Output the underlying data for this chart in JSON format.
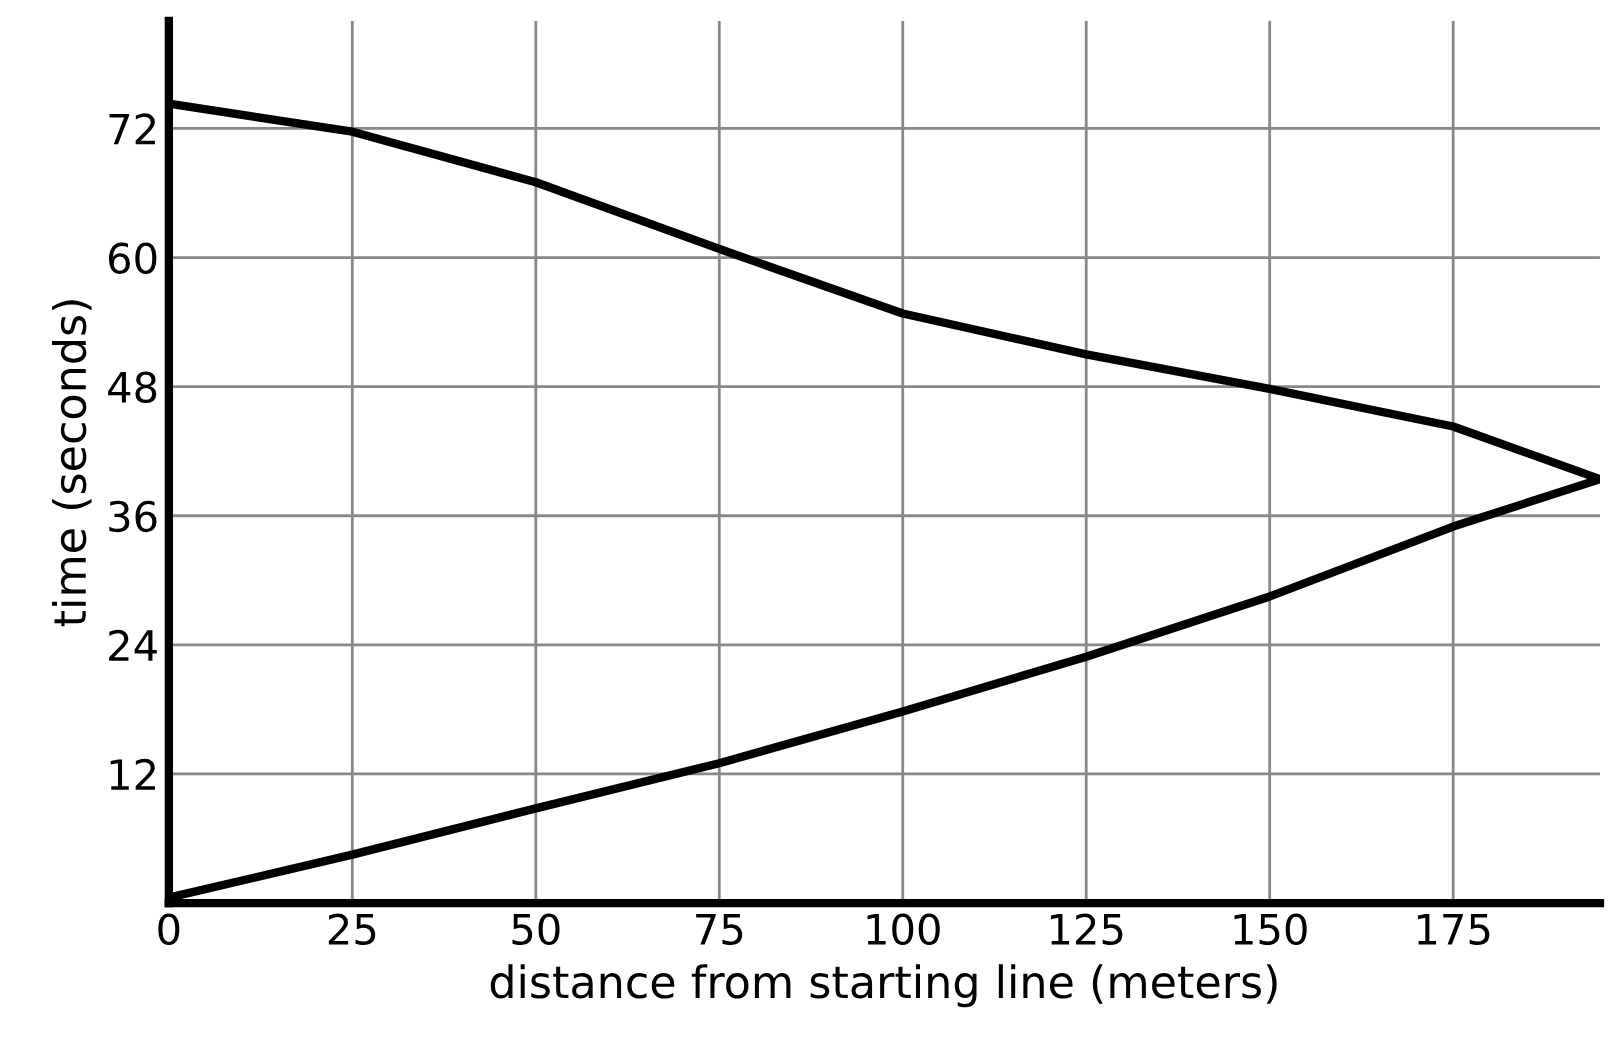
{
  "chart_data": {
    "type": "line",
    "xlabel": "distance from starting line (meters)",
    "ylabel": "time (seconds)",
    "series": [
      {
        "color": "#000000",
        "x": [
          0,
          25,
          50,
          75,
          100,
          125,
          150,
          175,
          195
        ],
        "values": [
          74.3,
          71.7,
          67,
          60.8,
          54.8,
          51,
          47.8,
          44.3,
          39.4
        ]
      },
      {
        "color": "#000000",
        "x": [
          0,
          25,
          50,
          75,
          100,
          125,
          150,
          175,
          195
        ],
        "values": [
          0.5,
          4.5,
          8.8,
          13,
          17.8,
          22.9,
          28.5,
          35,
          39.4
        ]
      }
    ],
    "xlim": [
      0,
      195
    ],
    "ylim": [
      0,
      82
    ],
    "xticks": [
      {
        "value": 0,
        "label": "0"
      },
      25,
      50,
      75,
      100,
      125,
      150,
      175
    ],
    "yticks": [
      12,
      24,
      36,
      48,
      60,
      72
    ],
    "grid": true,
    "marker": "none",
    "line_style": "solid"
  }
}
